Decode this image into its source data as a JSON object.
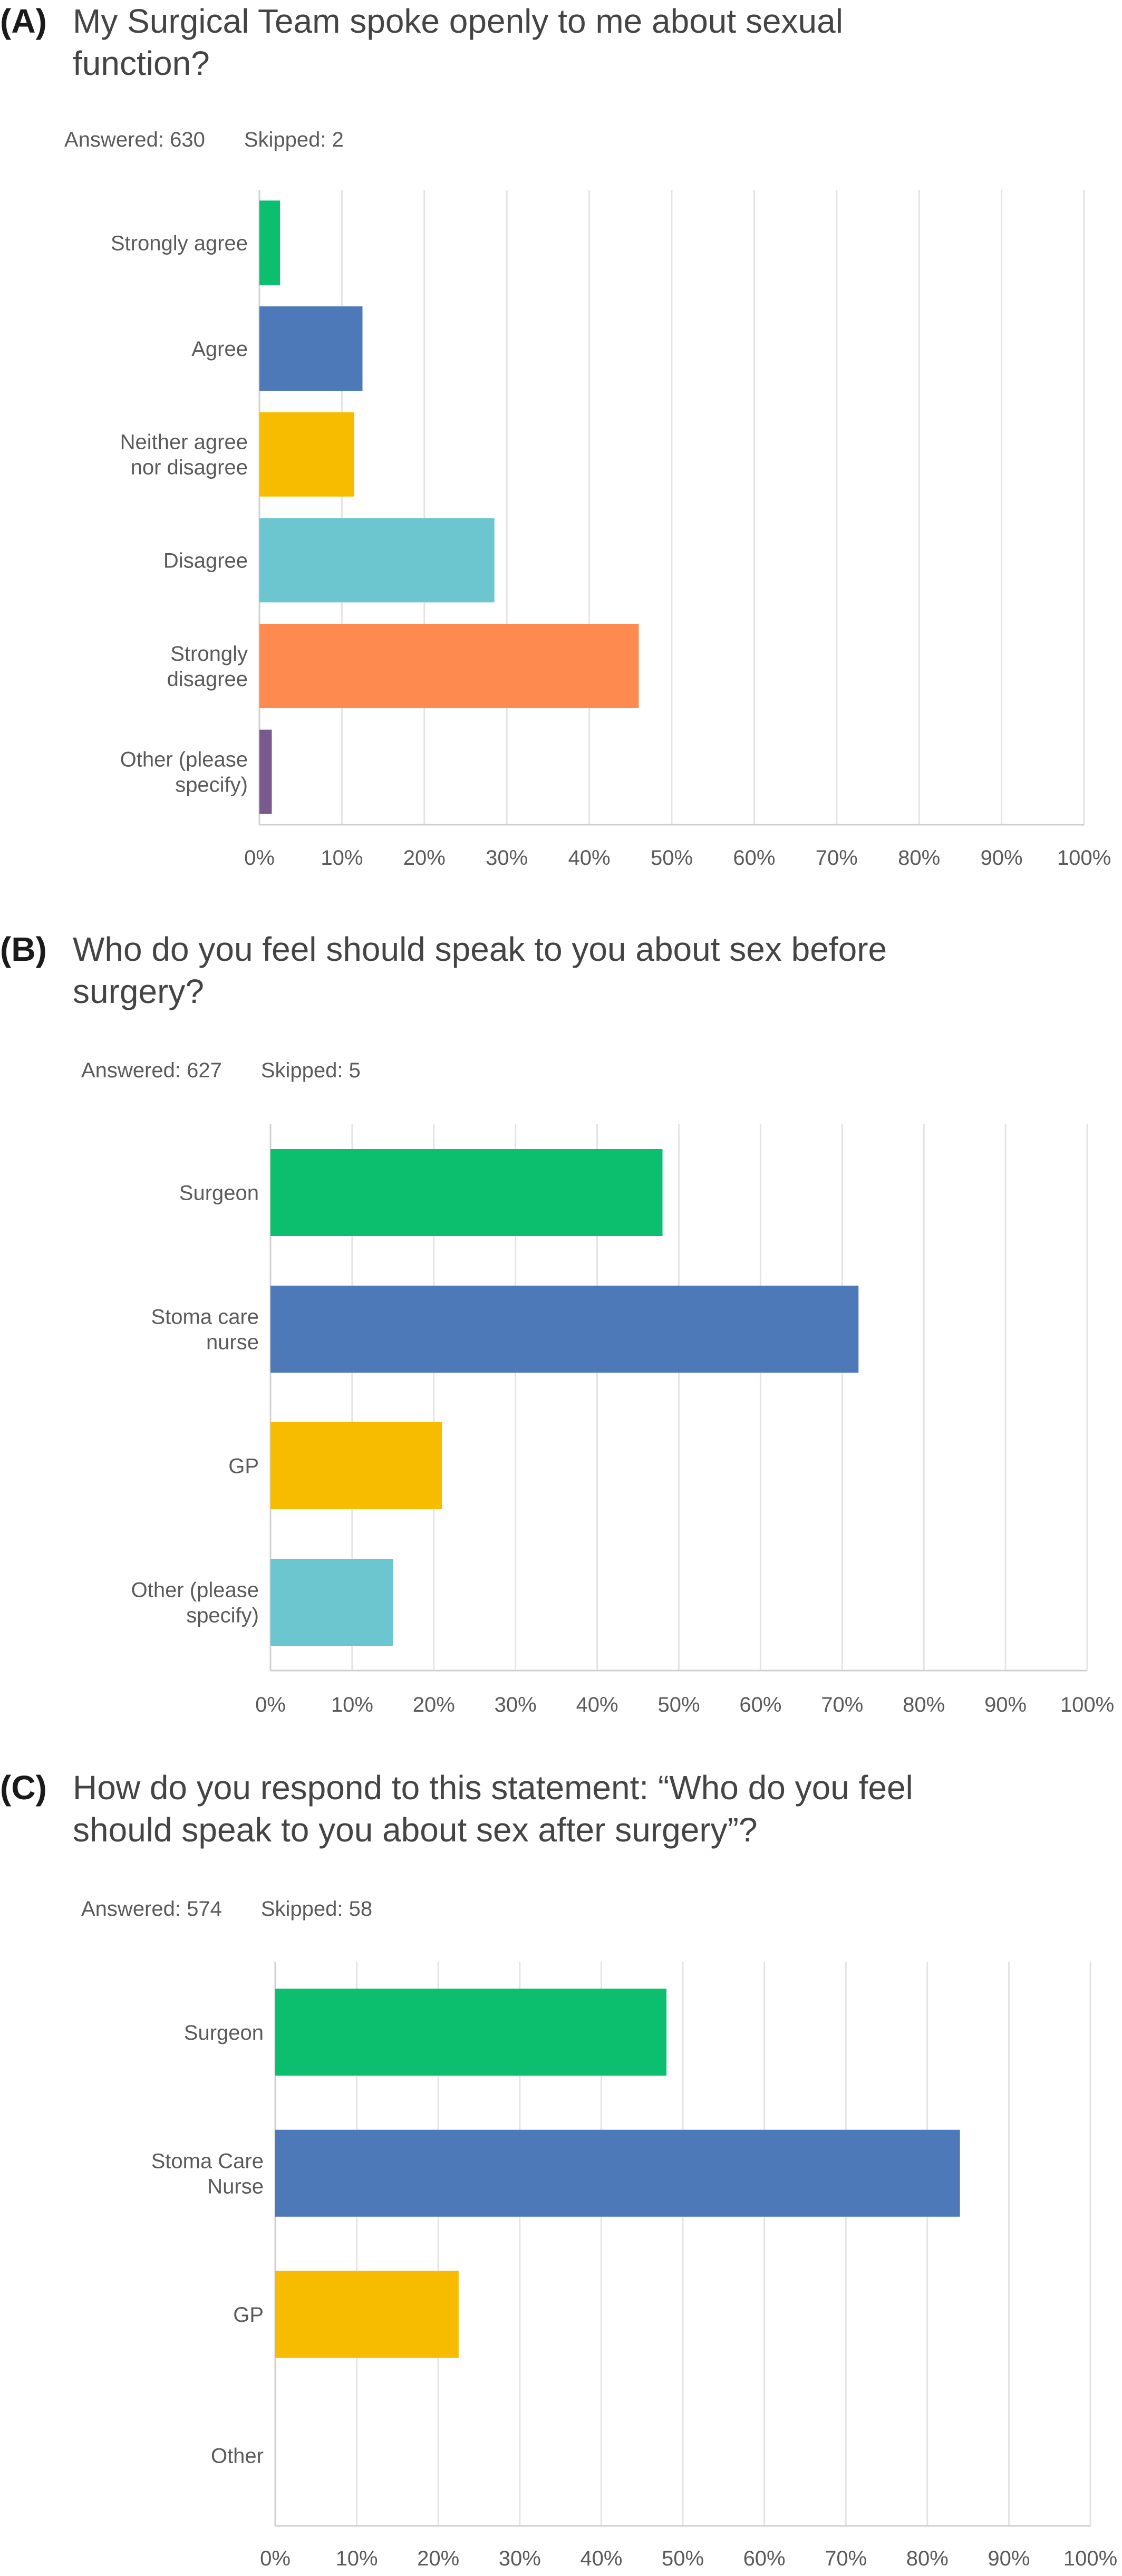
{
  "panels": [
    {
      "label": "(A)",
      "question_lines": [
        "My Surgical Team spoke openly to me about sexual",
        "function?"
      ],
      "answered": "Answered: 630",
      "skipped": "Skipped: 2"
    },
    {
      "label": "(B)",
      "question_lines": [
        "Who do you feel should speak to you about sex before",
        "surgery?"
      ],
      "answered": "Answered: 627",
      "skipped": "Skipped: 5"
    },
    {
      "label": "(C)",
      "question_lines": [
        "How do you respond to this statement: “Who do you feel",
        "should speak to you about sex after surgery”?"
      ],
      "answered": "Answered: 574",
      "skipped": "Skipped: 58"
    }
  ],
  "chart_data": [
    {
      "type": "bar",
      "orientation": "horizontal",
      "categories": [
        [
          "Strongly agree"
        ],
        [
          "Agree"
        ],
        [
          "Neither agree",
          "nor disagree"
        ],
        [
          "Disagree"
        ],
        [
          "Strongly",
          "disagree"
        ],
        [
          "Other (please",
          "specify)"
        ]
      ],
      "values": [
        2.5,
        12.5,
        11.5,
        28.5,
        46,
        1.5
      ],
      "colors": [
        "#0bbf6f",
        "#4e79b8",
        "#f7bc00",
        "#6cc6cf",
        "#ff8a50",
        "#785a8f"
      ],
      "xlim": [
        0,
        100
      ],
      "xticks": [
        "0%",
        "10%",
        "20%",
        "30%",
        "40%",
        "50%",
        "60%",
        "70%",
        "80%",
        "90%",
        "100%"
      ],
      "grid": true
    },
    {
      "type": "bar",
      "orientation": "horizontal",
      "categories": [
        [
          "Surgeon"
        ],
        [
          "Stoma care",
          "nurse"
        ],
        [
          "GP"
        ],
        [
          "Other (please",
          "specify)"
        ]
      ],
      "values": [
        48,
        72,
        21,
        15
      ],
      "colors": [
        "#0bbf6f",
        "#4e79b8",
        "#f7bc00",
        "#6cc6cf"
      ],
      "xlim": [
        0,
        100
      ],
      "xticks": [
        "0%",
        "10%",
        "20%",
        "30%",
        "40%",
        "50%",
        "60%",
        "70%",
        "80%",
        "90%",
        "100%"
      ],
      "grid": true
    },
    {
      "type": "bar",
      "orientation": "horizontal",
      "categories": [
        [
          "Surgeon"
        ],
        [
          "Stoma Care",
          "Nurse"
        ],
        [
          "GP"
        ],
        [
          "Other"
        ]
      ],
      "values": [
        48,
        84,
        22.5,
        0
      ],
      "colors": [
        "#0bbf6f",
        "#4e79b8",
        "#f7bc00",
        "#6cc6cf"
      ],
      "xlim": [
        0,
        100
      ],
      "xticks": [
        "0%",
        "10%",
        "20%",
        "30%",
        "40%",
        "50%",
        "60%",
        "70%",
        "80%",
        "90%",
        "100%"
      ],
      "grid": true
    }
  ]
}
